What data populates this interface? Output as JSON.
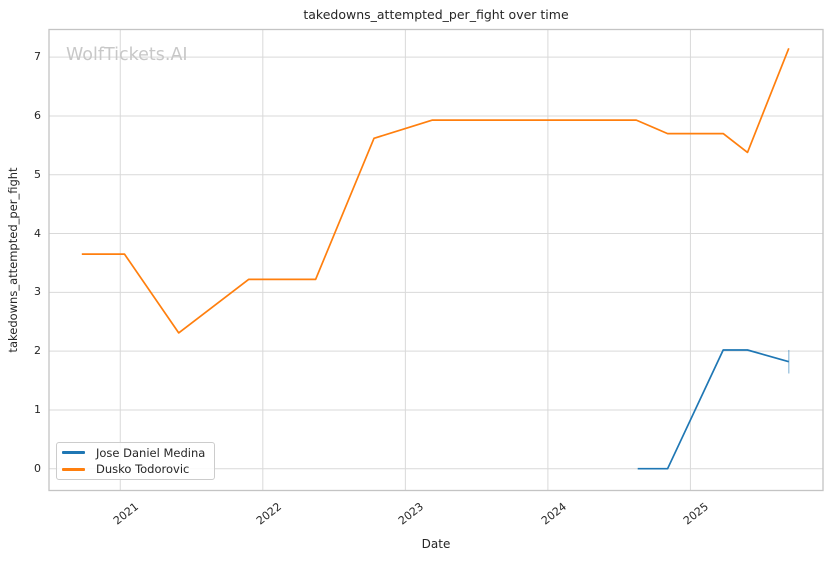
{
  "chart": {
    "title": "takedowns_attempted_per_fight over time",
    "watermark": "WolfTickets.AI",
    "xlabel": "Date",
    "ylabel": "takedowns_attempted_per_fight"
  },
  "chart_data": {
    "type": "line",
    "title": "takedowns_attempted_per_fight over time",
    "xlabel": "Date",
    "ylabel": "takedowns_attempted_per_fight",
    "x_unit": "decimal_year",
    "xlim": [
      2020.5,
      2025.93
    ],
    "ylim": [
      -0.37,
      7.47
    ],
    "xticks": [
      2021,
      2022,
      2023,
      2024,
      2025
    ],
    "yticks": [
      0,
      1,
      2,
      3,
      4,
      5,
      6,
      7
    ],
    "grid": true,
    "legend_position": "lower left",
    "series": [
      {
        "name": "Jose Daniel Medina",
        "color": "#1f77b4",
        "x": [
          2024.63,
          2024.84,
          2025.23,
          2025.4,
          2025.69
        ],
        "y": [
          0.0,
          0.0,
          2.02,
          2.02,
          1.82
        ],
        "end_tick": {
          "x": 2025.69,
          "y_from": 1.62,
          "y_to": 2.02
        }
      },
      {
        "name": "Dusko Todorovic",
        "color": "#ff7f0e",
        "x": [
          2020.73,
          2021.03,
          2021.41,
          2021.9,
          2022.37,
          2022.78,
          2023.19,
          2024.62,
          2024.84,
          2025.23,
          2025.4,
          2025.69
        ],
        "y": [
          3.65,
          3.65,
          2.31,
          3.22,
          3.22,
          5.62,
          5.93,
          5.93,
          5.7,
          5.7,
          5.38,
          7.15
        ]
      }
    ]
  }
}
